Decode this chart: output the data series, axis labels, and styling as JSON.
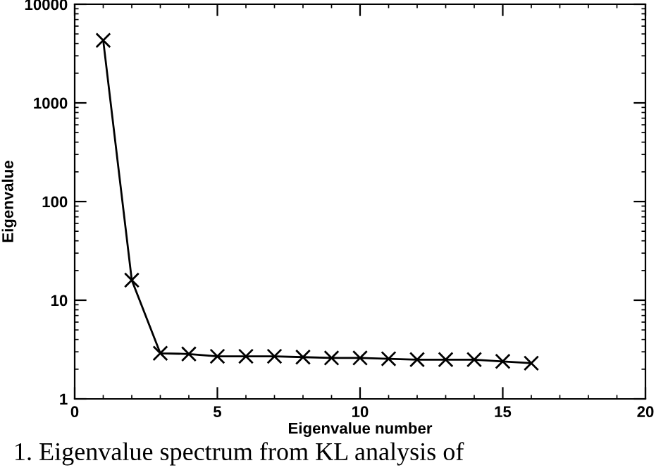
{
  "chart_data": {
    "type": "line",
    "xlabel": "Eigenvalue number",
    "ylabel": "Eigenvalue",
    "x": [
      1,
      2,
      3,
      4,
      5,
      6,
      7,
      8,
      9,
      10,
      11,
      12,
      13,
      14,
      15,
      16
    ],
    "series": [
      {
        "color": "#000000",
        "values": [
          4300,
          16,
          2.9,
          2.85,
          2.7,
          2.7,
          2.7,
          2.65,
          2.6,
          2.6,
          2.55,
          2.5,
          2.5,
          2.5,
          2.4,
          2.3
        ]
      }
    ],
    "log": "y",
    "xlim": [
      0,
      20
    ],
    "xticks": [
      0,
      5,
      10,
      15,
      20
    ],
    "ylim": [
      1,
      10000
    ],
    "yticks": [
      1,
      10,
      100,
      1000,
      10000
    ],
    "marker": "cross",
    "line_style": "solid",
    "grid": false,
    "legend": false,
    "annotations": [
      "1. Eigenvalue spectrum from KL analysis of"
    ]
  }
}
